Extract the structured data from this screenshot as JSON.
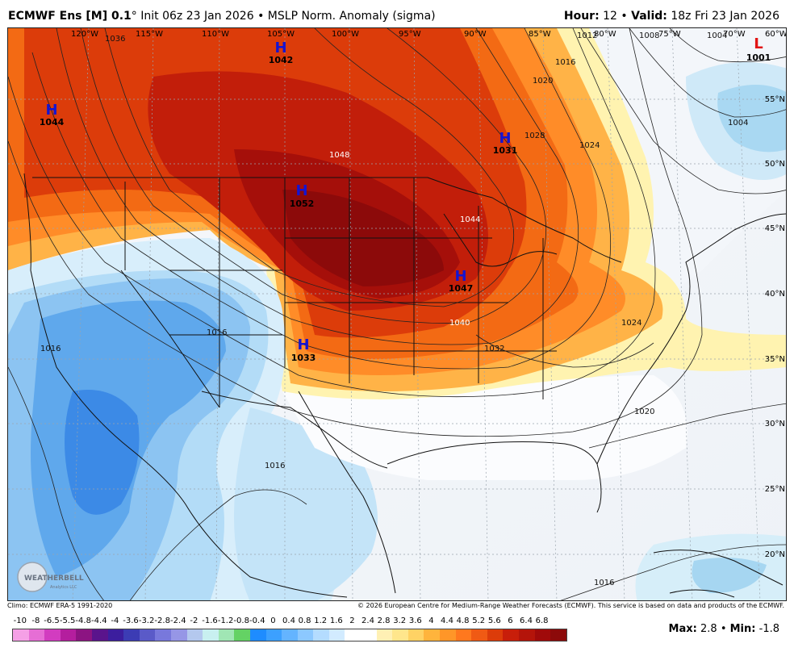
{
  "header": {
    "model": "ECMWF Ens [M] 0.1",
    "degree": "°",
    "init": "Init 06z 23 Jan 2026",
    "bullet": "•",
    "product": "MSLP Norm. Anomaly (sigma)",
    "hour_label": "Hour:",
    "hour_value": "12",
    "valid_label": "Valid:",
    "valid_value": "18z Fri 23 Jan 2026"
  },
  "map": {
    "lon_labels": [
      "120°W",
      "115°W",
      "110°W",
      "105°W",
      "100°W",
      "95°W",
      "90°W",
      "85°W",
      "80°W",
      "75°W",
      "70°W",
      "60°W"
    ],
    "lat_labels": [
      "55°N",
      "50°N",
      "45°N",
      "40°N",
      "35°N",
      "30°N",
      "25°N",
      "20°N"
    ],
    "pressure_centers": [
      {
        "type": "H",
        "value": "1042"
      },
      {
        "type": "H",
        "value": "1044"
      },
      {
        "type": "H",
        "value": "1052"
      },
      {
        "type": "H",
        "value": "1031"
      },
      {
        "type": "H",
        "value": "1047"
      },
      {
        "type": "H",
        "value": "1033"
      },
      {
        "type": "L",
        "value": "1001"
      }
    ],
    "isobar_labels": [
      "1036",
      "1004",
      "1012",
      "1008",
      "1016",
      "1020",
      "1028",
      "1024",
      "1048",
      "1044",
      "1040",
      "1032",
      "1004",
      "1024",
      "1020",
      "1016",
      "1016",
      "1016",
      "1016"
    ],
    "logo_text": "WEATHERBELL",
    "logo_sub": "Analytics LLC"
  },
  "credits": {
    "left": "Climo: ECMWF ERA-5 1991-2020",
    "right": "© 2026 European Centre for Medium-Range Weather Forecasts (ECMWF). This service is based on data and products of the ECMWF."
  },
  "colorbar": {
    "ticks": [
      "-10",
      "-8",
      "-6.5",
      "-5.5",
      "-4.8",
      "-4.4",
      "-4",
      "-3.6",
      "-3.2",
      "-2.8",
      "-2.4",
      "-2",
      "-1.6",
      "-1.2",
      "-0.8",
      "-0.4",
      "0",
      "0.4",
      "0.8",
      "1.2",
      "1.6",
      "2",
      "2.4",
      "2.8",
      "3.2",
      "3.6",
      "4",
      "4.4",
      "4.8",
      "5.2",
      "5.6",
      "6",
      "6.4",
      "6.8"
    ],
    "colors": [
      "#f5a0e6",
      "#e66ed5",
      "#d23cc0",
      "#b41e9e",
      "#8c1482",
      "#5a148c",
      "#3c1e9e",
      "#3c3cb4",
      "#5a5ac8",
      "#7878dc",
      "#9696e6",
      "#b4c8ee",
      "#c8f0f0",
      "#a0e6b4",
      "#64d264",
      "#1e8cff",
      "#3ca0ff",
      "#64b4ff",
      "#8cc8ff",
      "#b4dcff",
      "#d2ebff",
      "#ffffff",
      "#ffffff",
      "#fff0b4",
      "#ffe68c",
      "#ffd264",
      "#ffb43c",
      "#ff9628",
      "#ff781e",
      "#f05a14",
      "#dc3c0a",
      "#c81e0a",
      "#b4140a",
      "#a00a0a",
      "#8c0a0a"
    ]
  },
  "stats": {
    "max_label": "Max:",
    "max_value": "2.8",
    "min_label": "Min:",
    "min_value": "-1.8"
  }
}
